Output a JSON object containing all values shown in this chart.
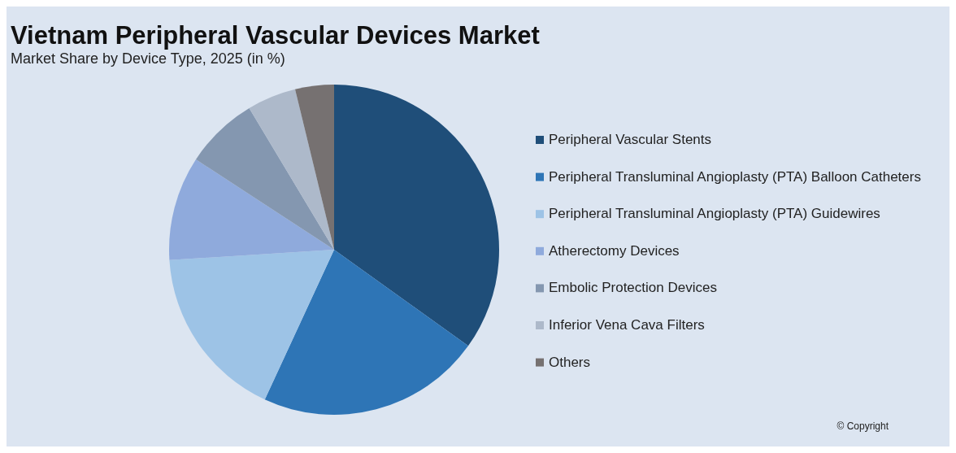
{
  "chart_data": {
    "type": "pie",
    "title": "Vietnam Peripheral Vascular Devices Market",
    "subtitle": "Market Share by Device Type, 2025 (in %)",
    "categories": [
      "Peripheral Vascular Stents",
      "Peripheral Transluminal Angioplasty (PTA) Balloon Catheters",
      "Peripheral Transluminal Angioplasty (PTA) Guidewires",
      "Atherectomy Devices",
      "Embolic Protection Devices",
      "Inferior Vena Cava Filters",
      "Others"
    ],
    "values": [
      34.9,
      22.0,
      17.1,
      10.2,
      7.2,
      4.8,
      3.8
    ],
    "colors": [
      "#1f4e79",
      "#2e75b6",
      "#9dc3e6",
      "#8faadc",
      "#8497b0",
      "#adb9ca",
      "#767171"
    ],
    "legend": "right",
    "annotations": [
      "© Copyright"
    ]
  }
}
